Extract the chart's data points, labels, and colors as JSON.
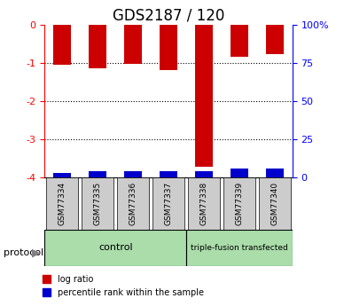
{
  "title": "GDS2187 / 120",
  "samples": [
    "GSM77334",
    "GSM77335",
    "GSM77336",
    "GSM77337",
    "GSM77338",
    "GSM77339",
    "GSM77340"
  ],
  "log_ratios": [
    -1.05,
    -1.15,
    -1.02,
    -1.2,
    -3.72,
    -0.85,
    -0.78
  ],
  "percentile_ranks": [
    3,
    4,
    4,
    4,
    4,
    6,
    6
  ],
  "ylim_left": [
    -4,
    0
  ],
  "ylim_right": [
    0,
    100
  ],
  "bar_color_red": "#cc0000",
  "bar_color_blue": "#0000cc",
  "control_count": 4,
  "triple_count": 3,
  "control_label": "control",
  "triple_label": "triple-fusion transfected",
  "protocol_label": "protocol",
  "legend_red": "log ratio",
  "legend_blue": "percentile rank within the sample",
  "control_color": "#aaddaa",
  "triple_color": "#aaddaa",
  "yticks_left": [
    0,
    -1,
    -2,
    -3,
    -4
  ],
  "yticks_right_vals": [
    0,
    25,
    50,
    75,
    100
  ],
  "yticks_right_labels": [
    "0",
    "25",
    "50",
    "75",
    "100%"
  ],
  "bar_width": 0.5,
  "xlabel_area_color": "#cccccc",
  "title_fontsize": 12,
  "tick_fontsize": 8
}
